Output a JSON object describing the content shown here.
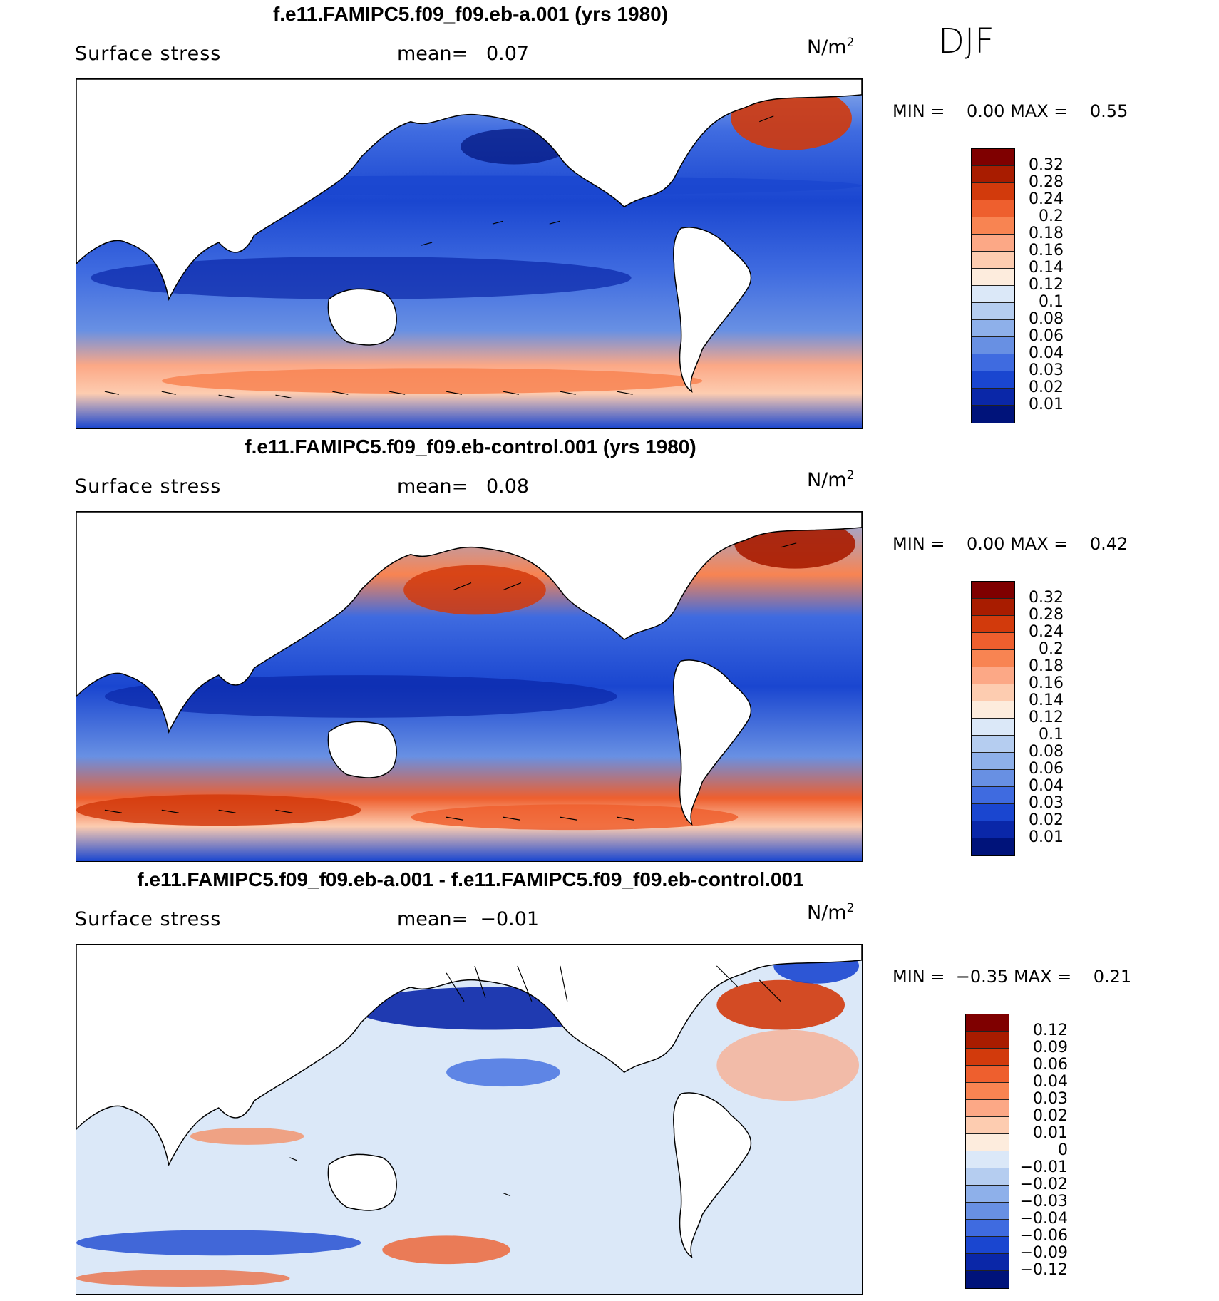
{
  "season": "DJF",
  "panels": [
    {
      "title": "f.e11.FAMIPC5.f09_f09.eb-a.001 (yrs 1980)",
      "variable": "Surface stress",
      "mean_label": "mean=",
      "mean_value": "0.07",
      "units": "N/m",
      "units_sup": "2",
      "min_label": "MIN =",
      "min_value": "0.00",
      "max_label": "MAX =",
      "max_value": "0.55",
      "colorbar_labels": [
        "0.32",
        "0.28",
        "0.24",
        "0.2",
        "0.18",
        "0.16",
        "0.14",
        "0.12",
        "0.1",
        "0.08",
        "0.06",
        "0.04",
        "0.03",
        "0.02",
        "0.01"
      ]
    },
    {
      "title": "f.e11.FAMIPC5.f09_f09.eb-control.001 (yrs 1980)",
      "variable": "Surface stress",
      "mean_label": "mean=",
      "mean_value": "0.08",
      "units": "N/m",
      "units_sup": "2",
      "min_label": "MIN =",
      "min_value": "0.00",
      "max_label": "MAX =",
      "max_value": "0.42",
      "colorbar_labels": [
        "0.32",
        "0.28",
        "0.24",
        "0.2",
        "0.18",
        "0.16",
        "0.14",
        "0.12",
        "0.1",
        "0.08",
        "0.06",
        "0.04",
        "0.03",
        "0.02",
        "0.01"
      ]
    },
    {
      "title": "f.e11.FAMIPC5.f09_f09.eb-a.001 - f.e11.FAMIPC5.f09_f09.eb-control.001",
      "variable": "Surface stress",
      "mean_label": "mean=",
      "mean_value": "−0.01",
      "units": "N/m",
      "units_sup": "2",
      "min_label": "MIN =",
      "min_value": "−0.35",
      "max_label": "MAX =",
      "max_value": "0.21",
      "colorbar_labels": [
        "0.12",
        "0.09",
        "0.06",
        "0.04",
        "0.03",
        "0.02",
        "0.01",
        "0",
        "−0.01",
        "−0.02",
        "−0.03",
        "−0.04",
        "−0.06",
        "−0.09",
        "−0.12"
      ]
    }
  ],
  "colors": {
    "scale": [
      "#7f0000",
      "#a81c00",
      "#d23a0c",
      "#ee5f2e",
      "#f88452",
      "#fca886",
      "#fdccb0",
      "#fdecdd",
      "#dbe8f8",
      "#b5cdf0",
      "#8eb0ea",
      "#6890e3",
      "#3f6be0",
      "#1a46d0",
      "#0a27a8",
      "#00137a"
    ]
  }
}
